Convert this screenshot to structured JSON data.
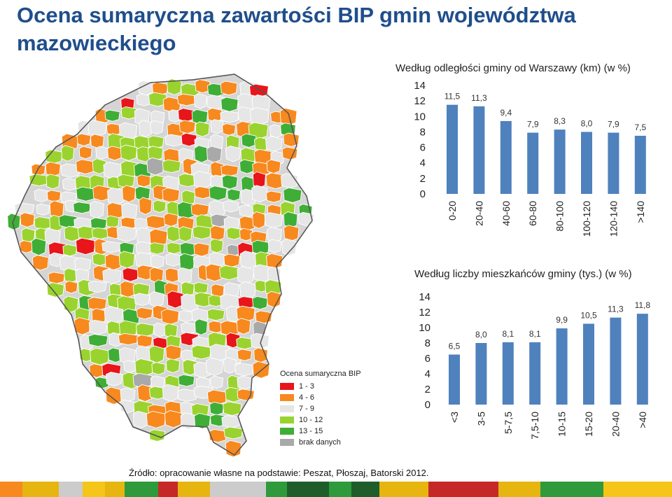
{
  "page": {
    "title": "Ocena sumaryczna zawartości BIP gmin województwa mazowieckiego",
    "source": "Źródło: opracowanie własne na podstawie: Peszat, Płoszaj, Batorski 2012."
  },
  "legend": {
    "title": "Ocena sumaryczna BIP",
    "items": [
      {
        "label": "1 - 3",
        "color": "#e8151b"
      },
      {
        "label": "4 - 6",
        "color": "#f7891f"
      },
      {
        "label": "7 - 9",
        "color": "#e6e6e6"
      },
      {
        "label": "10 - 12",
        "color": "#9ad32f"
      },
      {
        "label": "13 - 15",
        "color": "#3fae36"
      },
      {
        "label": "brak danych",
        "color": "#a9a9a9"
      }
    ]
  },
  "colors": {
    "bar": "#4f81bd",
    "footer": [
      "#f7891f",
      "#e6b510",
      "#cccccc",
      "#f5c518",
      "#e6b510",
      "#2e9a3c",
      "#c62828",
      "#e6b510",
      "#cccccc",
      "#2e9a3c",
      "#1f5e2b",
      "#2e9a3c",
      "#1f5e2b",
      "#e6b510",
      "#c62828",
      "#e6b510",
      "#2e9a3c",
      "#f5c518"
    ]
  },
  "chart_data": [
    {
      "type": "bar",
      "title": "Według odległości gminy od Warszawy (km) (w %)",
      "categories": [
        "0-20",
        "20-40",
        "40-60",
        "60-80",
        "80-100",
        "100-120",
        "120-140",
        ">140"
      ],
      "values": [
        11.5,
        11.3,
        9.4,
        7.9,
        8.3,
        8.0,
        7.9,
        7.5
      ],
      "value_labels": [
        "11,5",
        "11,3",
        "9,4",
        "7,9",
        "8,3",
        "8,0",
        "7,9",
        "7,5"
      ],
      "yticks": [
        "0",
        "2",
        "4",
        "6",
        "8",
        "10",
        "12",
        "14"
      ],
      "ylim": [
        0,
        14
      ],
      "grid": false
    },
    {
      "type": "bar",
      "title": "Według liczby mieszkańców  gminy (tys.) (w %)",
      "categories": [
        "<3",
        "3-5",
        "5-7,5",
        "7,5-10",
        "10-15",
        "15-20",
        "20-40",
        ">40"
      ],
      "values": [
        6.5,
        8.0,
        8.1,
        8.1,
        9.9,
        10.5,
        11.3,
        11.8
      ],
      "value_labels": [
        "6,5",
        "8,0",
        "8,1",
        "8,1",
        "9,9",
        "10,5",
        "11,3",
        "11,8"
      ],
      "yticks": [
        "0",
        "2",
        "4",
        "6",
        "8",
        "10",
        "12",
        "14"
      ],
      "ylim": [
        0,
        14
      ],
      "grid": false
    }
  ]
}
